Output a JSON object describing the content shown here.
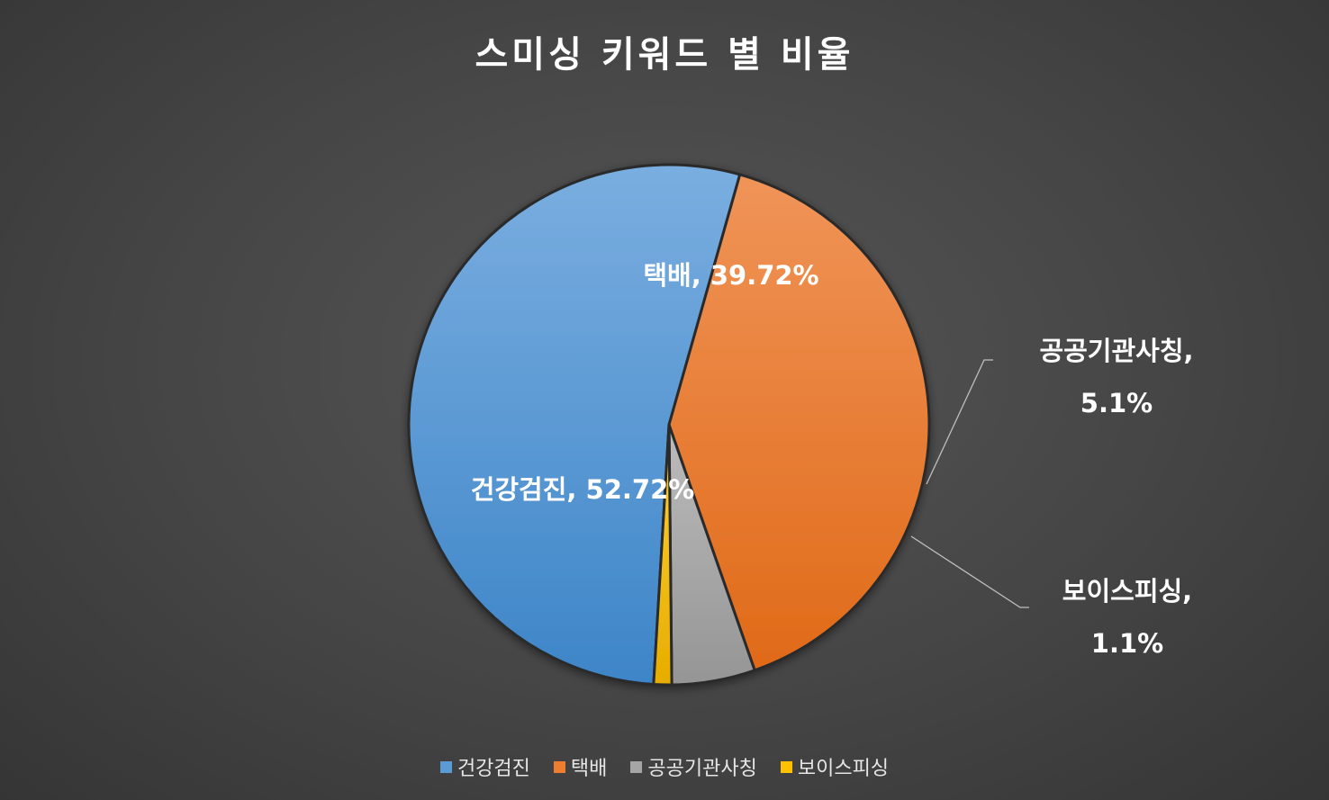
{
  "chart_data": {
    "type": "pie",
    "title": "스미싱 키워드 별 비율",
    "categories": [
      "건강검진",
      "택배",
      "공공기관사칭",
      "보이스피싱"
    ],
    "values": [
      52.72,
      39.72,
      5.1,
      1.1
    ],
    "data_labels": [
      [
        "건강검진, 52.72%"
      ],
      [
        "택배, 39.72%"
      ],
      [
        "공공기관사칭,",
        "5.1%"
      ],
      [
        "보이스피싱,",
        "1.1%"
      ]
    ],
    "colors": [
      "#5b9bd5",
      "#ed7d31",
      "#a5a5a5",
      "#ffc000"
    ],
    "legend_position": "bottom",
    "grid": false
  }
}
